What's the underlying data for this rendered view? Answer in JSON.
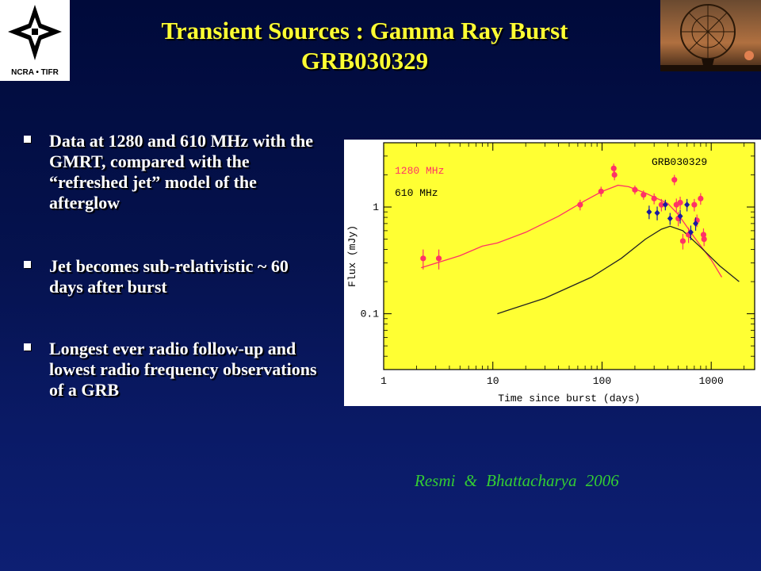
{
  "title": {
    "line1": "Transient  Sources :  Gamma Ray Burst",
    "line2": "GRB030329"
  },
  "logo": {
    "label": "NCRA • TIFR"
  },
  "bullets": [
    "Data at 1280 and 610 MHz with the GMRT, compared with the “refreshed jet” model of the afterglow",
    "Jet becomes sub-relativistic ~ 60 days after burst",
    "Longest ever radio follow-up and lowest radio frequency observations of a GRB"
  ],
  "citation": "Resmi  &  Bhattacharya  2006",
  "colors": {
    "background": "#05124e",
    "title": "#ffff33",
    "plot_background": "#ffff33",
    "series_1280": "#ff3366",
    "series_610": "#1a1aa0",
    "citation": "#33cc33"
  },
  "chart_data": {
    "type": "scatter",
    "title": "GRB030329",
    "xlabel": "Time since burst (days)",
    "ylabel": "Flux (mJy)",
    "xscale": "log",
    "yscale": "log",
    "xlim": [
      1,
      2500
    ],
    "ylim": [
      0.03,
      4
    ],
    "xticks": [
      {
        "v": 1,
        "label": "1"
      },
      {
        "v": 10,
        "label": "10"
      },
      {
        "v": 100,
        "label": "100"
      },
      {
        "v": 1000,
        "label": "1000"
      }
    ],
    "yticks": [
      {
        "v": 0.1,
        "label": "0.1"
      },
      {
        "v": 1,
        "label": "1"
      }
    ],
    "legend_position": "top-left",
    "series": [
      {
        "name": "1280 MHz",
        "points": [
          {
            "x": 2.3,
            "y": 0.33,
            "err": 0.07
          },
          {
            "x": 3.2,
            "y": 0.33,
            "err": 0.07
          },
          {
            "x": 63,
            "y": 1.05,
            "err": 0.12
          },
          {
            "x": 98,
            "y": 1.4,
            "err": 0.15
          },
          {
            "x": 128,
            "y": 2.3,
            "err": 0.25
          },
          {
            "x": 130,
            "y": 2.0,
            "err": 0.22
          },
          {
            "x": 200,
            "y": 1.45,
            "err": 0.14
          },
          {
            "x": 240,
            "y": 1.3,
            "err": 0.13
          },
          {
            "x": 300,
            "y": 1.2,
            "err": 0.14
          },
          {
            "x": 350,
            "y": 1.05,
            "err": 0.14
          },
          {
            "x": 460,
            "y": 1.8,
            "err": 0.2
          },
          {
            "x": 480,
            "y": 1.05,
            "err": 0.15
          },
          {
            "x": 500,
            "y": 0.78,
            "err": 0.12
          },
          {
            "x": 520,
            "y": 1.1,
            "err": 0.15
          },
          {
            "x": 550,
            "y": 0.48,
            "err": 0.08
          },
          {
            "x": 620,
            "y": 0.55,
            "err": 0.09
          },
          {
            "x": 700,
            "y": 1.05,
            "err": 0.14
          },
          {
            "x": 740,
            "y": 0.75,
            "err": 0.1
          },
          {
            "x": 800,
            "y": 1.2,
            "err": 0.15
          },
          {
            "x": 850,
            "y": 0.55,
            "err": 0.08
          },
          {
            "x": 860,
            "y": 0.5,
            "err": 0.07
          }
        ],
        "model": [
          {
            "x": 2.2,
            "y": 0.27
          },
          {
            "x": 5,
            "y": 0.35
          },
          {
            "x": 8,
            "y": 0.43
          },
          {
            "x": 11,
            "y": 0.46
          },
          {
            "x": 20,
            "y": 0.58
          },
          {
            "x": 40,
            "y": 0.82
          },
          {
            "x": 70,
            "y": 1.15
          },
          {
            "x": 100,
            "y": 1.4
          },
          {
            "x": 140,
            "y": 1.6
          },
          {
            "x": 175,
            "y": 1.55
          },
          {
            "x": 250,
            "y": 1.35
          },
          {
            "x": 400,
            "y": 1.08
          },
          {
            "x": 500,
            "y": 0.85
          },
          {
            "x": 700,
            "y": 0.52
          },
          {
            "x": 1000,
            "y": 0.32
          },
          {
            "x": 1250,
            "y": 0.22
          }
        ]
      },
      {
        "name": "610 MHz",
        "points": [
          {
            "x": 270,
            "y": 0.9,
            "err": 0.13
          },
          {
            "x": 320,
            "y": 0.88,
            "err": 0.13
          },
          {
            "x": 380,
            "y": 1.05,
            "err": 0.12
          },
          {
            "x": 420,
            "y": 0.78,
            "err": 0.1
          },
          {
            "x": 520,
            "y": 0.82,
            "err": 0.12
          },
          {
            "x": 600,
            "y": 1.05,
            "err": 0.14
          },
          {
            "x": 650,
            "y": 0.58,
            "err": 0.09
          },
          {
            "x": 720,
            "y": 0.7,
            "err": 0.1
          }
        ],
        "model": [
          {
            "x": 11,
            "y": 0.1
          },
          {
            "x": 30,
            "y": 0.14
          },
          {
            "x": 80,
            "y": 0.22
          },
          {
            "x": 150,
            "y": 0.33
          },
          {
            "x": 250,
            "y": 0.5
          },
          {
            "x": 350,
            "y": 0.62
          },
          {
            "x": 420,
            "y": 0.66
          },
          {
            "x": 550,
            "y": 0.6
          },
          {
            "x": 800,
            "y": 0.42
          },
          {
            "x": 1200,
            "y": 0.28
          },
          {
            "x": 1800,
            "y": 0.2
          }
        ]
      }
    ]
  }
}
